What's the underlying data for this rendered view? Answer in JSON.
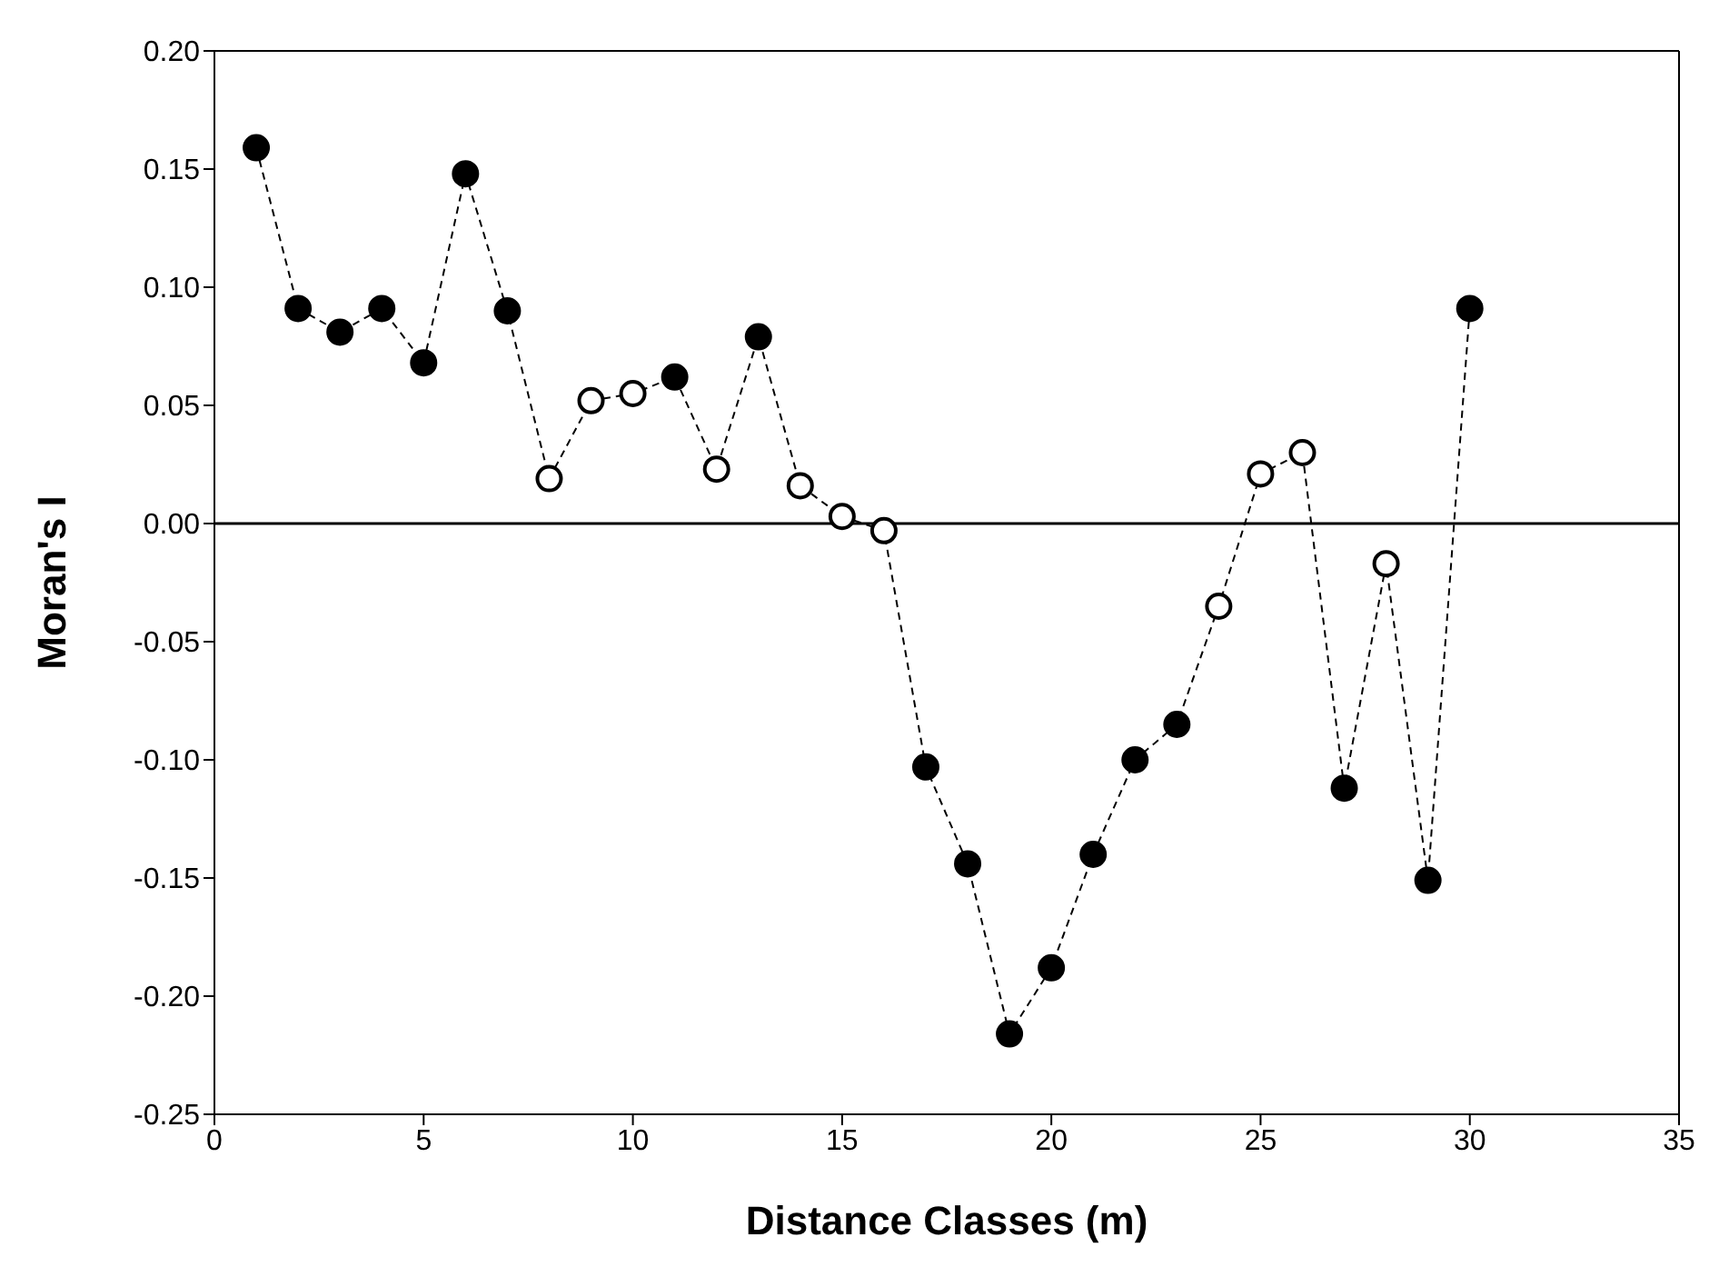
{
  "chart_data": {
    "type": "line",
    "xlabel": "Distance Classes (m)",
    "ylabel": "Moran's I",
    "x": [
      1,
      2,
      3,
      4,
      5,
      6,
      7,
      8,
      9,
      10,
      11,
      12,
      13,
      14,
      15,
      16,
      17,
      18,
      19,
      20,
      21,
      22,
      23,
      24,
      25,
      26,
      27,
      28,
      29,
      30
    ],
    "series": [
      {
        "type": "line",
        "color": "#000000",
        "line_style": "dashed",
        "marker": "none",
        "values": [
          0.159,
          0.091,
          0.081,
          0.091,
          0.068,
          0.148,
          0.09,
          0.019,
          0.052,
          0.055,
          0.062,
          0.023,
          0.079,
          0.016,
          0.003,
          -0.003,
          -0.103,
          -0.144,
          -0.216,
          -0.188,
          -0.14,
          -0.1,
          -0.085,
          -0.035,
          0.021,
          0.03,
          -0.112,
          -0.017,
          -0.151,
          0.091
        ]
      },
      {
        "type": "scatter",
        "color": "#000000",
        "marker": "circle",
        "values": [
          0.159,
          0.091,
          0.081,
          0.091,
          0.068,
          0.148,
          0.09,
          null,
          null,
          null,
          0.062,
          null,
          0.079,
          null,
          null,
          null,
          -0.103,
          -0.144,
          -0.216,
          -0.188,
          -0.14,
          -0.1,
          -0.085,
          null,
          null,
          null,
          -0.112,
          null,
          -0.151,
          0.091
        ]
      },
      {
        "type": "scatter",
        "color": "#ffffff",
        "marker": "circle",
        "values": [
          null,
          null,
          null,
          null,
          null,
          null,
          null,
          0.019,
          0.052,
          0.055,
          null,
          0.023,
          null,
          0.016,
          0.003,
          -0.003,
          null,
          null,
          null,
          null,
          null,
          null,
          null,
          -0.035,
          0.021,
          0.03,
          null,
          -0.017,
          null,
          null
        ]
      }
    ],
    "xlim": [
      0,
      35
    ],
    "xticks": [
      0,
      5,
      10,
      15,
      20,
      25,
      30,
      35
    ],
    "ylim": [
      -0.25,
      0.2
    ],
    "yticks": [
      {
        "value": -0.25,
        "label": "-0.25"
      },
      {
        "value": -0.2,
        "label": "-0.20"
      },
      {
        "value": -0.15,
        "label": "-0.15"
      },
      {
        "value": -0.1,
        "label": "-0.10"
      },
      {
        "value": -0.05,
        "label": "-0.05"
      },
      {
        "value": 0,
        "label": "0.00"
      },
      {
        "value": 0.05,
        "label": "0.05"
      },
      {
        "value": 0.1,
        "label": "0.10"
      },
      {
        "value": 0.15,
        "label": "0.15"
      },
      {
        "value": 0.2,
        "label": "0.20"
      }
    ],
    "ref_lines": [
      {
        "axis": "y",
        "value": 0,
        "color": "#000000"
      }
    ]
  }
}
